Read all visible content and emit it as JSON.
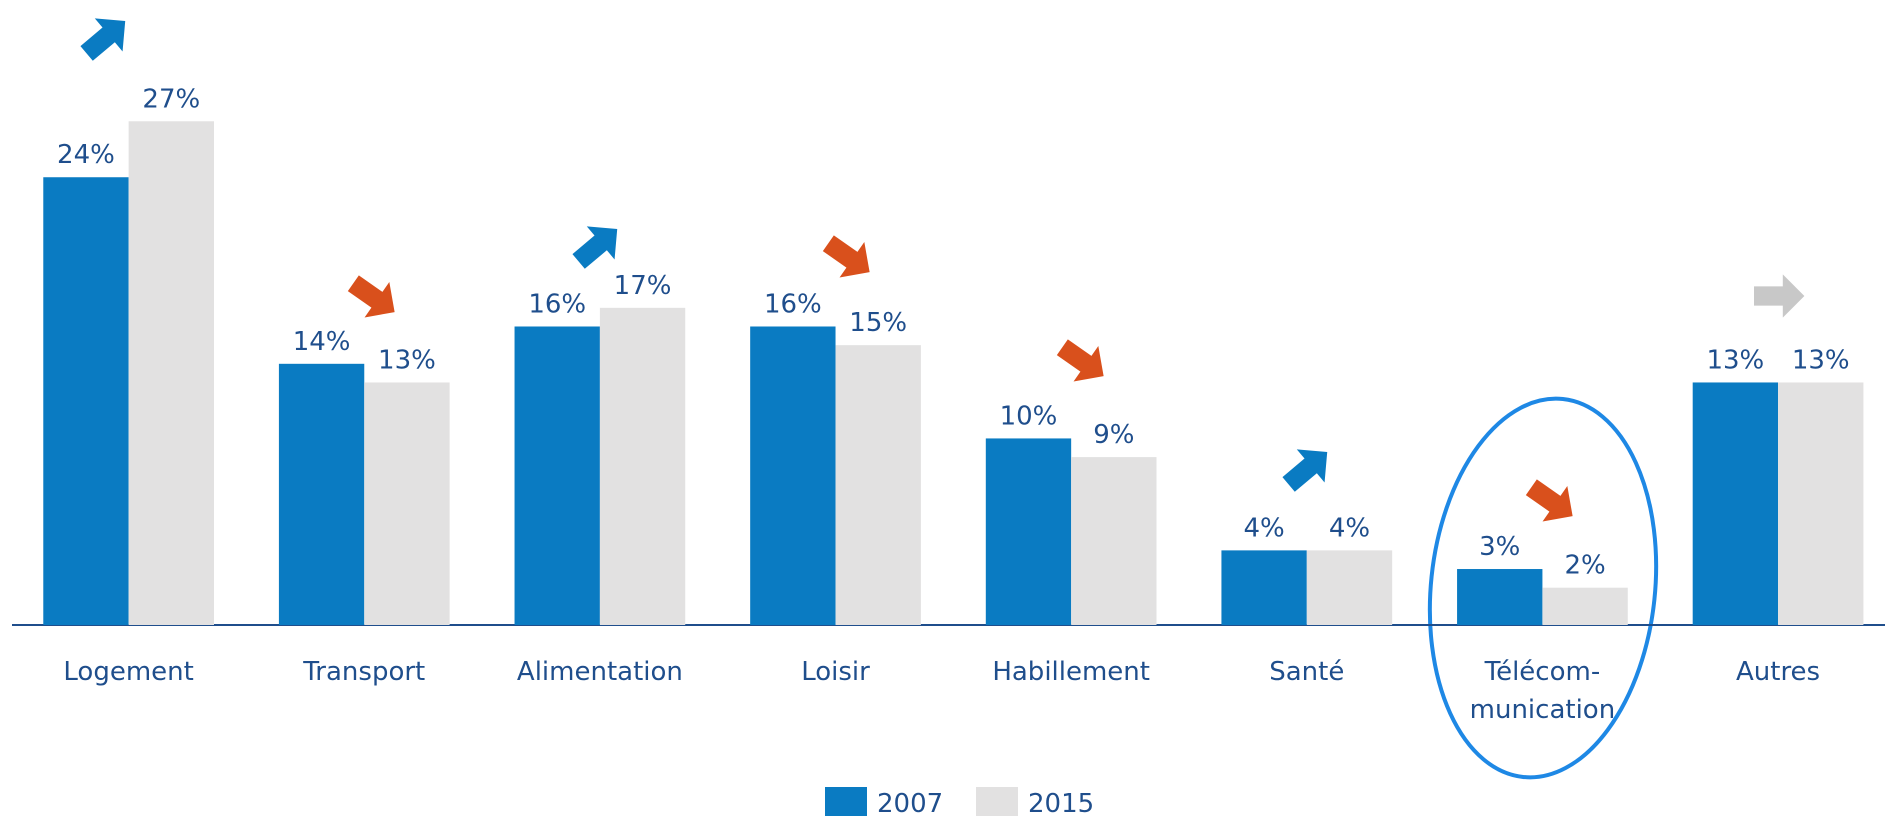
{
  "chart_data": {
    "type": "bar",
    "categories": [
      "Logement",
      "Transport",
      "Alimentation",
      "Loisir",
      "Habillement",
      "Santé",
      "Télécom-\nmunication",
      "Autres"
    ],
    "series": [
      {
        "name": "2007",
        "color": "#0a7bc2",
        "values": [
          24,
          14,
          16,
          16,
          10,
          4,
          3,
          13
        ],
        "value_labels": [
          "24%",
          "14%",
          "16%",
          "16%",
          "10%",
          "4%",
          "3%",
          "13%"
        ]
      },
      {
        "name": "2015",
        "color": "#e2e1e1",
        "values": [
          27,
          13,
          17,
          15,
          9,
          4,
          2,
          13
        ],
        "value_labels": [
          "27%",
          "13%",
          "17%",
          "15%",
          "9%",
          "4%",
          "2%",
          "13%"
        ]
      }
    ],
    "ylim": [
      0,
      33.5
    ]
  }
}
